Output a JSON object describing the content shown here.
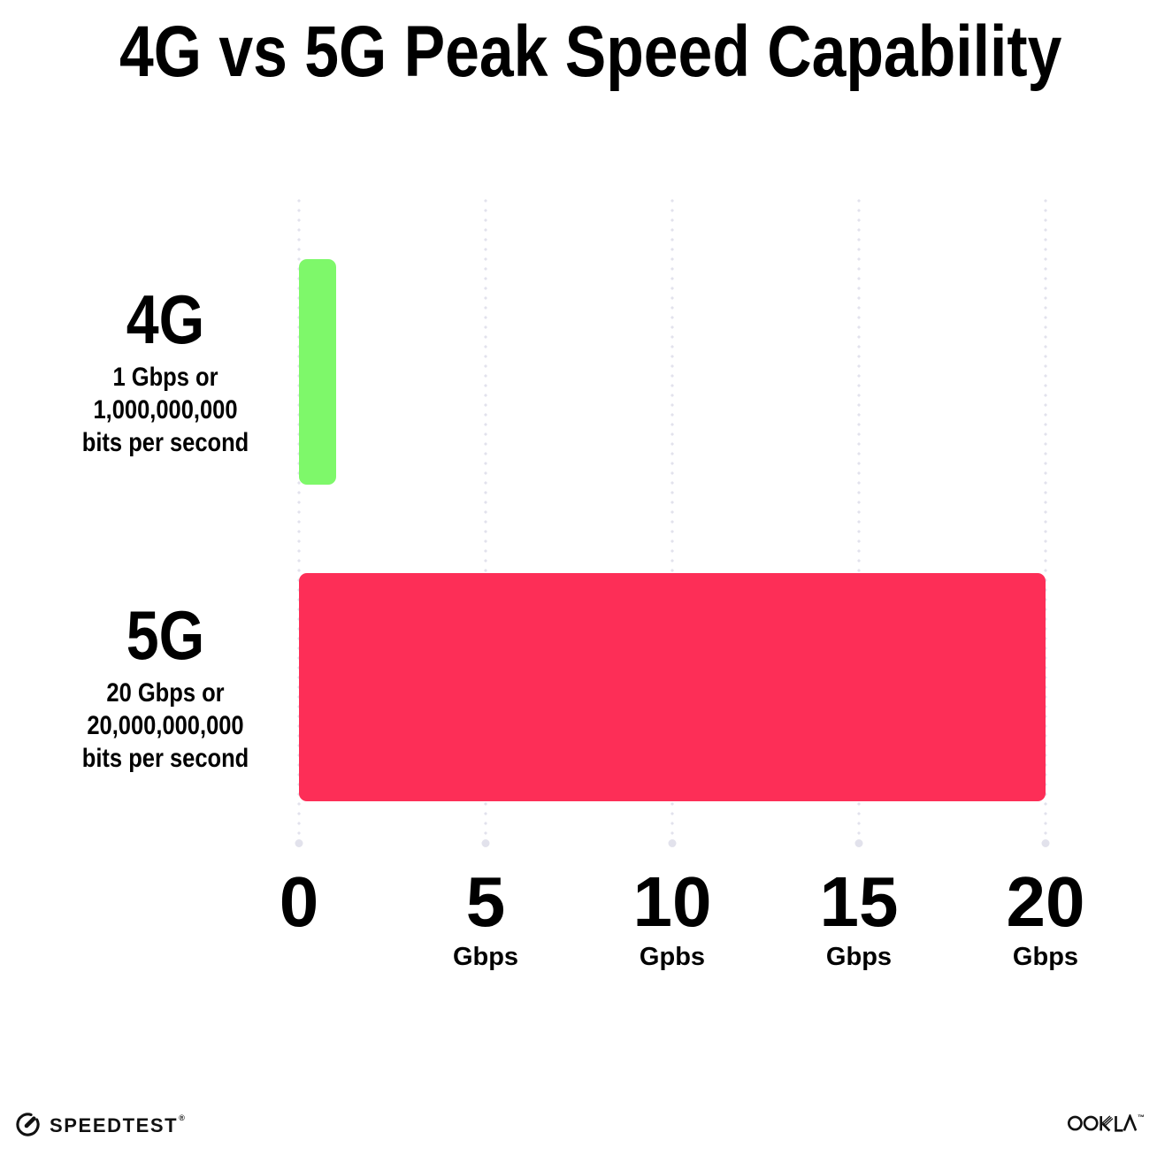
{
  "title": "4G vs 5G Peak Speed Capability",
  "chart_data": {
    "type": "bar",
    "orientation": "horizontal",
    "title": "4G vs 5G Peak Speed Capability",
    "categories": [
      "4G",
      "5G"
    ],
    "values": [
      1,
      20
    ],
    "value_unit": "Gbps",
    "xlim": [
      0,
      20
    ],
    "grid": "vertical-dotted",
    "legend": "none",
    "x_ticks": [
      {
        "label": "0",
        "unit": ""
      },
      {
        "label": "5",
        "unit": "Gbps"
      },
      {
        "label": "10",
        "unit": "Gpbs"
      },
      {
        "label": "15",
        "unit": "Gbps"
      },
      {
        "label": "20",
        "unit": "Gbps"
      }
    ],
    "rows": [
      {
        "name": "4G",
        "value": 1,
        "color": "#7EF86A",
        "desc1": "1 Gbps or",
        "desc2": "1,000,000,000",
        "desc3": "bits per second"
      },
      {
        "name": "5G",
        "value": 20,
        "color": "#FD2E57",
        "desc1": "20 Gbps or",
        "desc2": "20,000,000,000",
        "desc3": "bits per second"
      }
    ]
  },
  "footer": {
    "speedtest_label": "SPEEDTEST",
    "speedtest_mark": "®",
    "ookla_label": "OOKLA",
    "ookla_mark": "™"
  },
  "colors": {
    "background": "#FFFFFF",
    "text": "#000000",
    "bar_4g": "#7EF86A",
    "bar_5g": "#FD2E57",
    "grid_dot": "#E2E2EC",
    "logo": "#111111"
  }
}
